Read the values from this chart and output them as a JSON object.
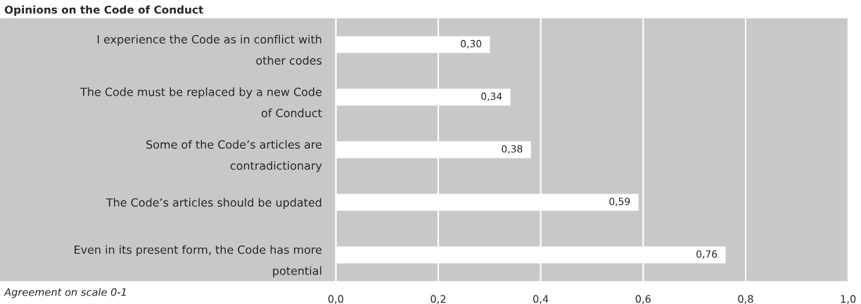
{
  "chart_data": {
    "type": "bar",
    "orientation": "horizontal",
    "title": "Opinions on the Code of Conduct",
    "categories": [
      "I experience the Code as in conflict with\nother codes",
      "The Code must be replaced by a new Code\nof Conduct",
      "Some of the Code’s articles are\ncontradictionary",
      "The Code’s articles should be updated",
      "Even in its present form, the Code has more\npotential"
    ],
    "values": [
      0.3,
      0.34,
      0.38,
      0.59,
      0.76
    ],
    "value_labels": [
      "0,30",
      "0,34",
      "0,38",
      "0,59",
      "0,76"
    ],
    "color": "#ffffff",
    "xlabel": "Agreement on scale 0-1",
    "xlim": [
      0,
      1
    ],
    "xticks": [
      {
        "value": 0,
        "label": "0,0"
      },
      {
        "value": 0.2,
        "label": "0,2"
      },
      {
        "value": 0.4,
        "label": "0,4"
      },
      {
        "value": 0.6,
        "label": "0,6"
      },
      {
        "value": 0.8,
        "label": "0,8"
      },
      {
        "value": 1,
        "label": "1,0"
      }
    ],
    "grid": "x",
    "legend": false
  }
}
